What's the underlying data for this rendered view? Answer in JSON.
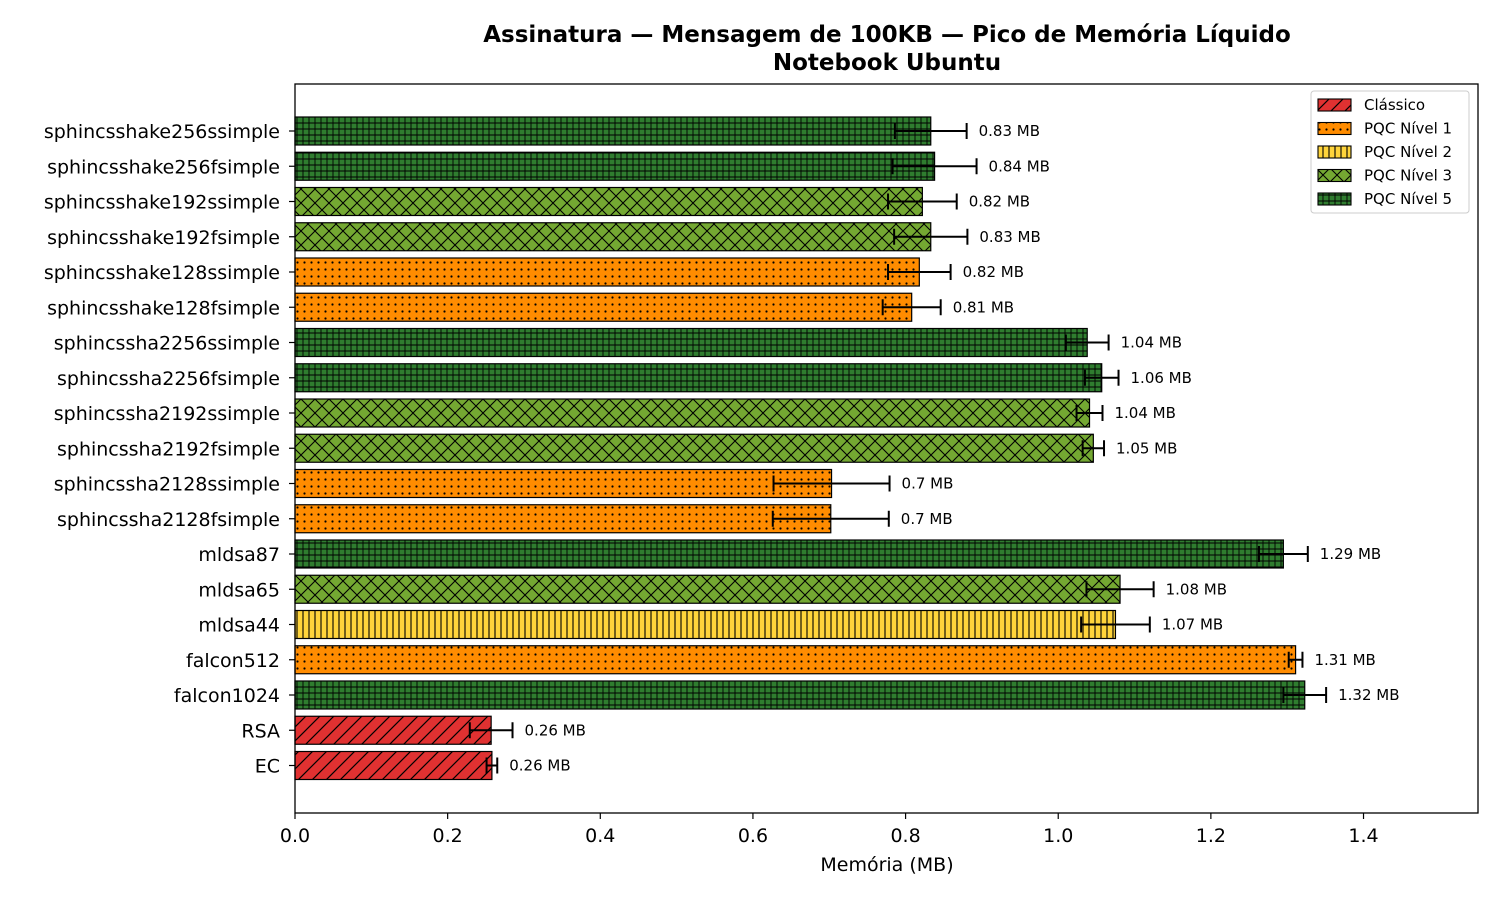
{
  "chart_data": {
    "type": "bar",
    "orientation": "horizontal",
    "title": "Assinatura — Mensagem de 100KB — Pico de Memória Líquido",
    "subtitle": "Notebook Ubuntu",
    "xlabel": "Memória (MB)",
    "ylabel": "",
    "xlim": [
      0,
      1.55
    ],
    "x_ticks": [
      "0.0",
      "0.2",
      "0.4",
      "0.6",
      "0.8",
      "1.0",
      "1.2",
      "1.4"
    ],
    "grid": false,
    "legend_position": "top-right",
    "legend": [
      {
        "key": "classico",
        "label": "Clássico",
        "color": "#e03131",
        "hatch": "diagonal"
      },
      {
        "key": "n1",
        "label": "PQC Nível 1",
        "color": "#ff8c00",
        "hatch": "dots"
      },
      {
        "key": "n2",
        "label": "PQC Nível 2",
        "color": "#ffd43b",
        "hatch": "vertical"
      },
      {
        "key": "n3",
        "label": "PQC Nível 3",
        "color": "#74a832",
        "hatch": "crosshatch"
      },
      {
        "key": "n5",
        "label": "PQC Nível 5",
        "color": "#2f7d2f",
        "hatch": "grid"
      }
    ],
    "bars": [
      {
        "category": "sphincsshake256ssimple",
        "value": 0.833,
        "error": 0.047,
        "label": "0.83 MB",
        "group": "n5"
      },
      {
        "category": "sphincsshake256fsimple",
        "value": 0.838,
        "error": 0.055,
        "label": "0.84 MB",
        "group": "n5"
      },
      {
        "category": "sphincsshake192ssimple",
        "value": 0.822,
        "error": 0.045,
        "label": "0.82 MB",
        "group": "n3"
      },
      {
        "category": "sphincsshake192fsimple",
        "value": 0.833,
        "error": 0.048,
        "label": "0.83 MB",
        "group": "n3"
      },
      {
        "category": "sphincsshake128ssimple",
        "value": 0.818,
        "error": 0.041,
        "label": "0.82 MB",
        "group": "n1"
      },
      {
        "category": "sphincsshake128fsimple",
        "value": 0.808,
        "error": 0.038,
        "label": "0.81 MB",
        "group": "n1"
      },
      {
        "category": "sphincssha2256ssimple",
        "value": 1.038,
        "error": 0.028,
        "label": "1.04 MB",
        "group": "n5"
      },
      {
        "category": "sphincssha2256fsimple",
        "value": 1.057,
        "error": 0.022,
        "label": "1.06 MB",
        "group": "n5"
      },
      {
        "category": "sphincssha2192ssimple",
        "value": 1.041,
        "error": 0.017,
        "label": "1.04 MB",
        "group": "n3"
      },
      {
        "category": "sphincssha2192fsimple",
        "value": 1.046,
        "error": 0.014,
        "label": "1.05 MB",
        "group": "n3"
      },
      {
        "category": "sphincssha2128ssimple",
        "value": 0.703,
        "error": 0.076,
        "label": "0.7 MB",
        "group": "n1"
      },
      {
        "category": "sphincssha2128fsimple",
        "value": 0.702,
        "error": 0.076,
        "label": "0.7 MB",
        "group": "n1"
      },
      {
        "category": "mldsa87",
        "value": 1.295,
        "error": 0.032,
        "label": "1.29 MB",
        "group": "n5"
      },
      {
        "category": "mldsa65",
        "value": 1.081,
        "error": 0.044,
        "label": "1.08 MB",
        "group": "n3"
      },
      {
        "category": "mldsa44",
        "value": 1.075,
        "error": 0.045,
        "label": "1.07 MB",
        "group": "n2"
      },
      {
        "category": "falcon512",
        "value": 1.311,
        "error": 0.009,
        "label": "1.31 MB",
        "group": "n1"
      },
      {
        "category": "falcon1024",
        "value": 1.323,
        "error": 0.028,
        "label": "1.32 MB",
        "group": "n5"
      },
      {
        "category": "RSA",
        "value": 0.257,
        "error": 0.028,
        "label": "0.26 MB",
        "group": "classico"
      },
      {
        "category": "EC",
        "value": 0.258,
        "error": 0.007,
        "label": "0.26 MB",
        "group": "classico"
      }
    ]
  }
}
